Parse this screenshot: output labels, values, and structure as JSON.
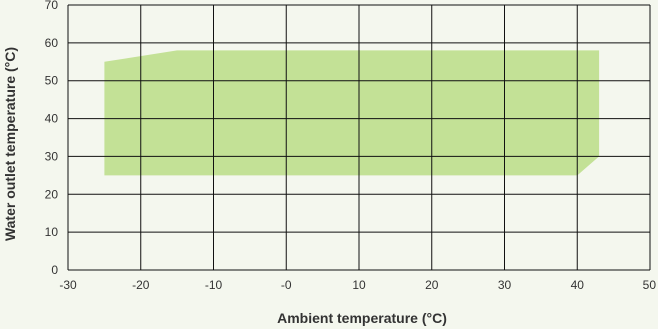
{
  "chart_data": {
    "type": "area",
    "title": "",
    "xlabel": "Ambient temperature (°C)",
    "ylabel": "Water outlet temperature (°C)",
    "xlim": [
      -30,
      50
    ],
    "ylim": [
      0,
      70
    ],
    "x_ticks": [
      "-30",
      "-20",
      "-10",
      "-0",
      "10",
      "20",
      "30",
      "40",
      "50"
    ],
    "y_ticks": [
      "0",
      "10",
      "20",
      "30",
      "40",
      "50",
      "60",
      "70"
    ],
    "grid": true,
    "legend": "none",
    "series": [
      {
        "points": [
          {
            "x": -25,
            "y": 25
          },
          {
            "x": -25,
            "y": 55
          },
          {
            "x": -15,
            "y": 58
          },
          {
            "x": 43,
            "y": 58
          },
          {
            "x": 43,
            "y": 30
          },
          {
            "x": 40,
            "y": 25
          }
        ],
        "color": "#c3e196"
      }
    ],
    "colors": {
      "background": "#f4f7ee",
      "grid": "#111111",
      "fill": "#c3e196",
      "text": "#333333"
    }
  }
}
